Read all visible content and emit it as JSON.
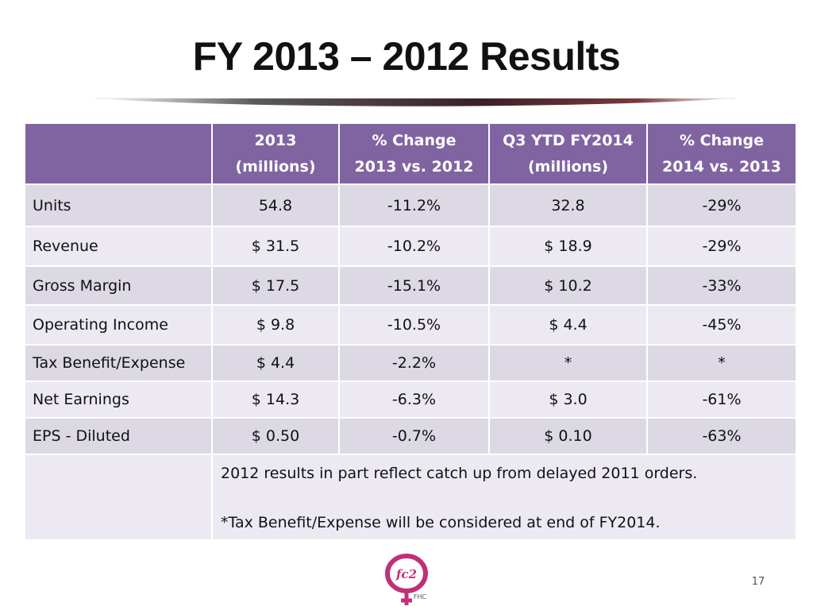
{
  "slide": {
    "title": "FY 2013 – 2012 Results",
    "page_number": "17"
  },
  "table": {
    "headers": [
      "",
      "2013\n(millions)",
      "% Change\n2013 vs. 2012",
      "Q3 YTD FY2014\n(millions)",
      "% Change\n2014 vs. 2013"
    ],
    "rows": [
      [
        "Units",
        "54.8",
        "-11.2%",
        "32.8",
        "-29%"
      ],
      [
        "Revenue",
        "$ 31.5",
        "-10.2%",
        "$ 18.9",
        "-29%"
      ],
      [
        "Gross Margin",
        "$ 17.5",
        "-15.1%",
        "$ 10.2",
        "-33%"
      ],
      [
        "Operating Income",
        "$ 9.8",
        "-10.5%",
        "$ 4.4",
        "-45%"
      ],
      [
        "Tax Benefit/Expense",
        "$ 4.4",
        "-2.2%",
        "*",
        "*"
      ],
      [
        "Net Earnings",
        "$ 14.3",
        "-6.3%",
        "$ 3.0",
        "-61%"
      ],
      [
        "EPS - Diluted",
        "$ 0.50",
        "-0.7%",
        "$ 0.10",
        "-63%"
      ]
    ],
    "notes": [
      "2012 results in part reflect catch up from delayed 2011 orders.",
      "*Tax Benefit/Expense will be considered at end of FY2014."
    ]
  },
  "logo": {
    "mark_text": "fc2",
    "company_text": "FHC"
  },
  "colors": {
    "header_bg": "#8064a2",
    "row_dark": "#dcd8e4",
    "row_light": "#ede9f2",
    "logo_pink": "#c0307a"
  }
}
